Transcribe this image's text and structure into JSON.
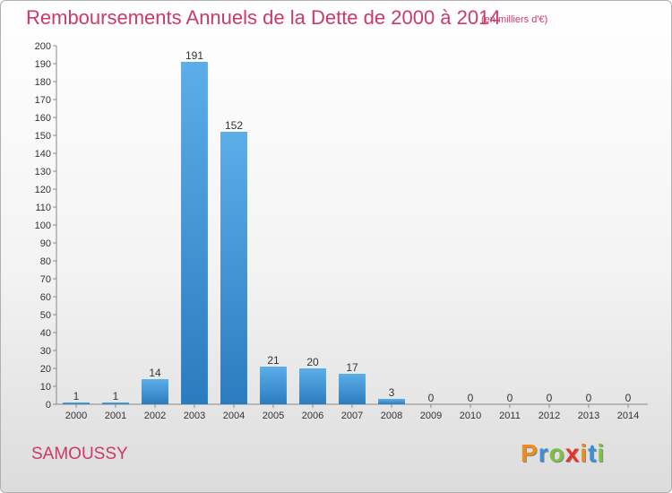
{
  "header": {
    "title": "Remboursements Annuels de la Dette de 2000 à 2014",
    "subtitle": "(en milliers d'€)"
  },
  "footer": {
    "commune": "SAMOUSSY",
    "logo_letters": [
      "P",
      "r",
      "o",
      "x",
      "i",
      "t",
      "i"
    ],
    "logo_colors": [
      "#f08a1c",
      "#3a8fd8",
      "#7cc242",
      "#e8322a",
      "#f08a1c",
      "#3a8fd8",
      "#7cc242"
    ]
  },
  "chart_data": {
    "type": "bar",
    "title": "Remboursements Annuels de la Dette de 2000 à 2014",
    "xlabel": "",
    "ylabel": "",
    "categories": [
      "2000",
      "2001",
      "2002",
      "2003",
      "2004",
      "2005",
      "2006",
      "2007",
      "2008",
      "2009",
      "2010",
      "2011",
      "2012",
      "2013",
      "2014"
    ],
    "values": [
      1,
      1,
      14,
      191,
      152,
      21,
      20,
      17,
      3,
      0,
      0,
      0,
      0,
      0,
      0
    ],
    "ylim": [
      0,
      200
    ],
    "yticks": [
      0,
      10,
      20,
      30,
      40,
      50,
      60,
      70,
      80,
      90,
      100,
      110,
      120,
      130,
      140,
      150,
      160,
      170,
      180,
      190,
      200
    ],
    "grid": false,
    "bar_color_light": "#5caee8",
    "bar_color_dark": "#2a7cc0"
  }
}
